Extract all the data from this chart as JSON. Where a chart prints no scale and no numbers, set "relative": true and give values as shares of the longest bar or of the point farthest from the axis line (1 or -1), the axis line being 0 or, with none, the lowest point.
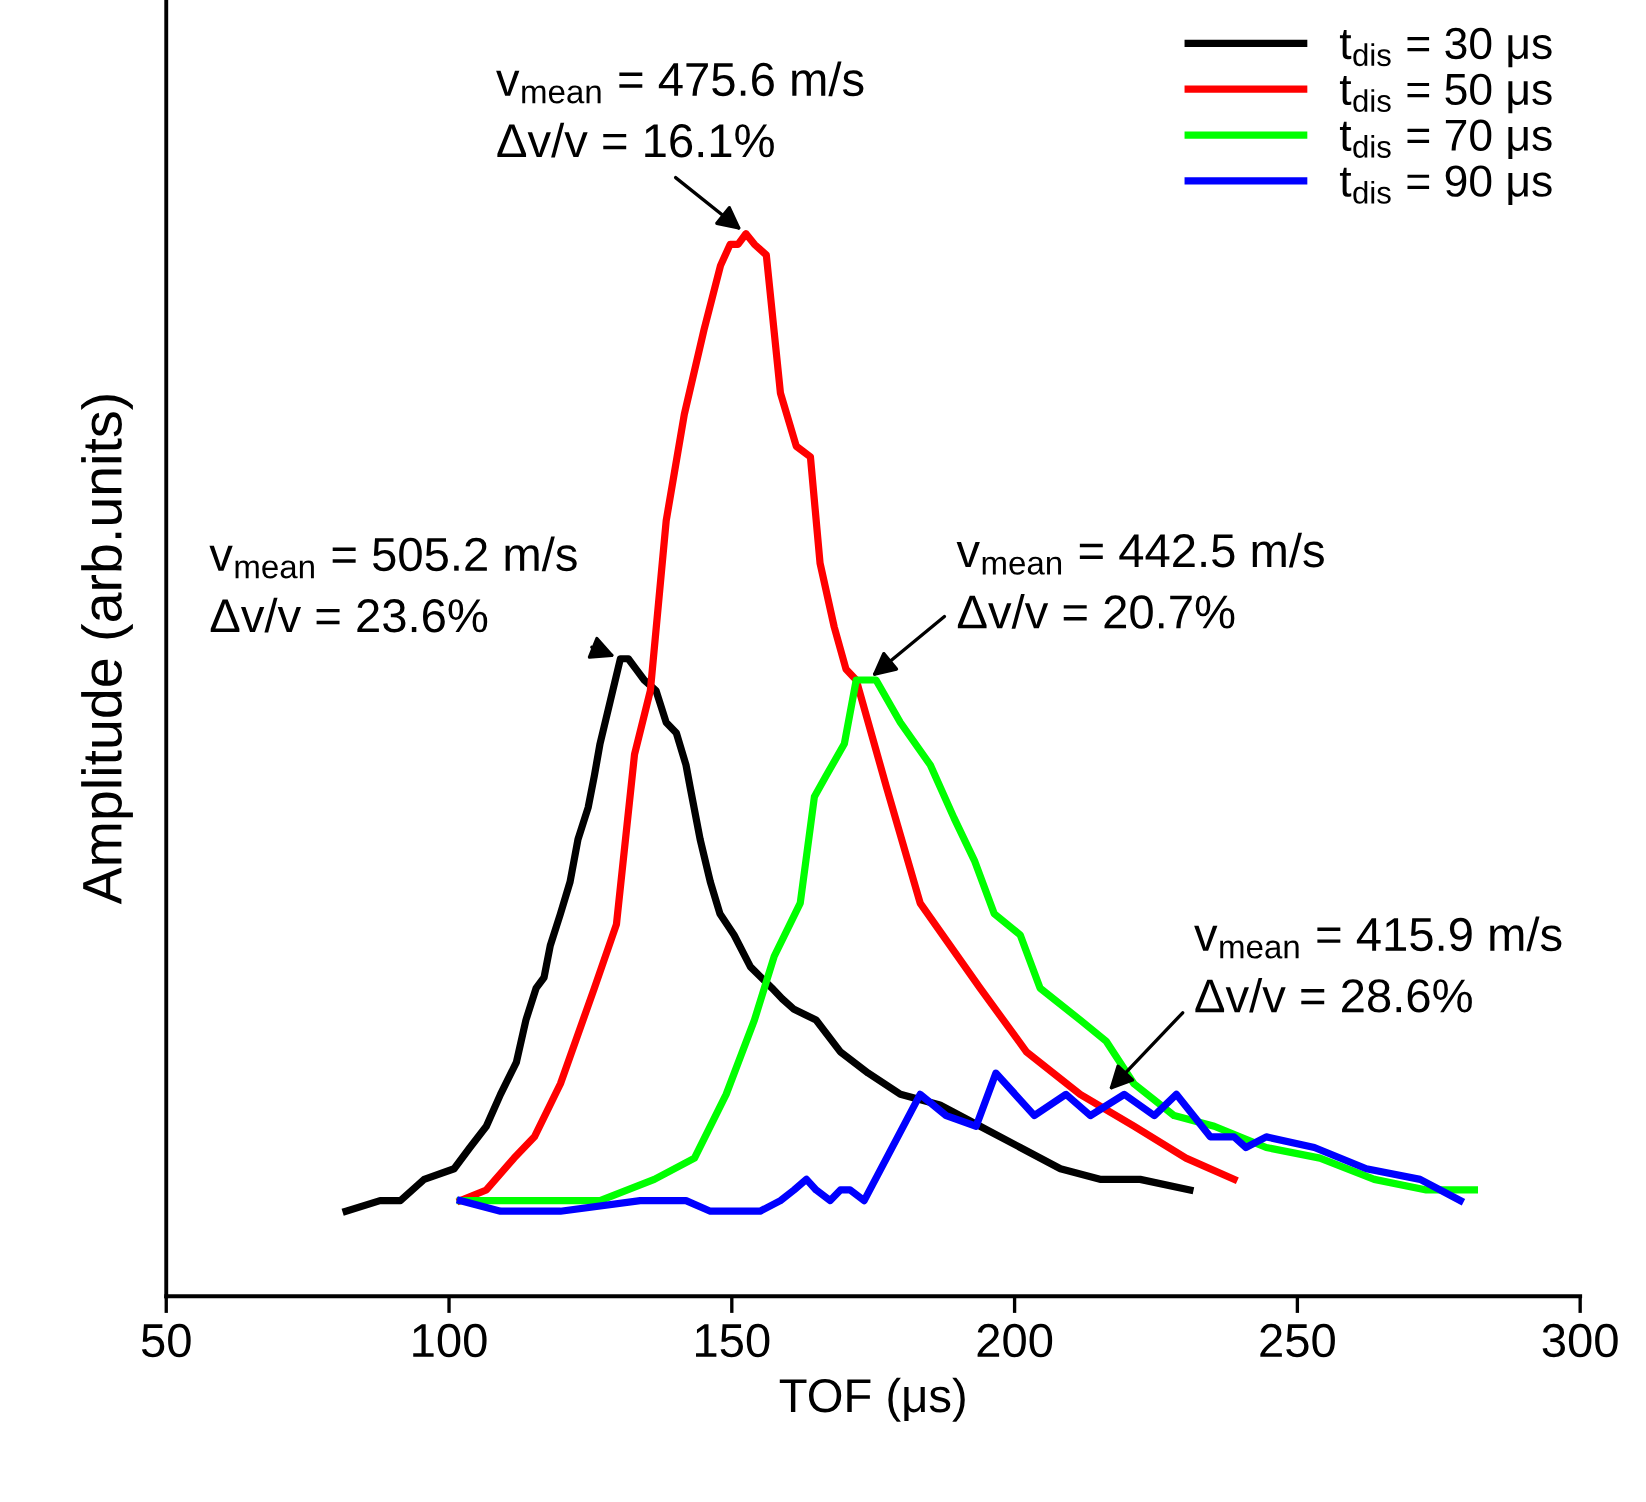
{
  "chart_data": {
    "type": "line",
    "relative": true,
    "xlabel": "TOF (μs)",
    "ylabel": "Amplitude (arb.units)",
    "xlim": [
      50,
      300
    ],
    "xticks": [
      50,
      100,
      150,
      200,
      250,
      300
    ],
    "grid": false,
    "legend": "top right",
    "marker": "none",
    "line_style": "solid",
    "series": [
      {
        "name": "t$_{dis}$ = 30 μs",
        "color": "#000000",
        "x": [
          81.8,
          87.8,
          91.4,
          95.6,
          100.9,
          103.7,
          106.6,
          109.1,
          111.9,
          113.6,
          115.4,
          116.8,
          117.9,
          119.7,
          121.4,
          122.8,
          124.6,
          125.7,
          126.7,
          128.5,
          130.3,
          131.7,
          133.1,
          134.5,
          136.6,
          138.4,
          140.2,
          141.9,
          142.6,
          144.4,
          146.2,
          147.9,
          150.4,
          153.3,
          157.1,
          158.9,
          161.0,
          164.9,
          169.2,
          174.1,
          179.8,
          186.8,
          193.9,
          201.0,
          208.1,
          215.1,
          222.2,
          231.0
        ],
        "values": [
          0.08,
          0.09,
          0.09,
          0.11,
          0.12,
          0.14,
          0.16,
          0.19,
          0.22,
          0.26,
          0.29,
          0.3,
          0.33,
          0.36,
          0.39,
          0.43,
          0.46,
          0.49,
          0.52,
          0.56,
          0.6,
          0.6,
          0.59,
          0.58,
          0.57,
          0.54,
          0.53,
          0.5,
          0.48,
          0.43,
          0.39,
          0.36,
          0.34,
          0.31,
          0.29,
          0.28,
          0.27,
          0.26,
          0.23,
          0.21,
          0.19,
          0.18,
          0.16,
          0.14,
          0.12,
          0.11,
          0.11,
          0.1
        ]
      },
      {
        "name": "t$_{dis}$ = 50 μs",
        "color": "#ff0000",
        "x": [
          102.0,
          106.6,
          111.5,
          115.1,
          119.7,
          125.7,
          129.6,
          132.8,
          135.6,
          138.4,
          141.6,
          145.1,
          148.0,
          149.7,
          151.1,
          152.5,
          154.0,
          156.1,
          158.6,
          161.4,
          163.9,
          165.6,
          168.1,
          170.2,
          172.0,
          177.3,
          183.3,
          193.9,
          202.1,
          211.6,
          221.1,
          230.3,
          238.8
        ],
        "values": [
          0.09,
          0.1,
          0.13,
          0.15,
          0.2,
          0.29,
          0.35,
          0.51,
          0.57,
          0.73,
          0.83,
          0.91,
          0.97,
          0.99,
          0.99,
          1.0,
          0.99,
          0.98,
          0.85,
          0.8,
          0.79,
          0.69,
          0.63,
          0.59,
          0.58,
          0.48,
          0.37,
          0.29,
          0.23,
          0.19,
          0.16,
          0.13,
          0.11
        ]
      },
      {
        "name": "t$_{dis}$ = 70 μs",
        "color": "#00ff00",
        "x": [
          102.0,
          112.6,
          126.7,
          136.3,
          143.4,
          149.0,
          154.0,
          157.5,
          162.1,
          164.6,
          166.7,
          169.9,
          172.0,
          175.5,
          179.8,
          185.1,
          189.3,
          192.9,
          196.4,
          201.0,
          204.5,
          211.6,
          216.2,
          221.1,
          228.2,
          235.3,
          244.5,
          254.0,
          263.6,
          272.8,
          281.3
        ],
        "values": [
          0.09,
          0.09,
          0.09,
          0.11,
          0.13,
          0.19,
          0.26,
          0.32,
          0.37,
          0.47,
          0.49,
          0.52,
          0.58,
          0.58,
          0.54,
          0.5,
          0.45,
          0.41,
          0.36,
          0.34,
          0.29,
          0.26,
          0.24,
          0.2,
          0.17,
          0.16,
          0.14,
          0.13,
          0.11,
          0.1,
          0.1
        ]
      },
      {
        "name": "t$_{dis}$ = 90 μs",
        "color": "#0000ff",
        "x": [
          102.0,
          109.1,
          119.7,
          133.8,
          141.9,
          146.2,
          155.0,
          158.6,
          161.0,
          163.2,
          164.9,
          167.4,
          169.2,
          170.9,
          173.4,
          183.3,
          187.9,
          193.2,
          196.7,
          203.5,
          209.1,
          213.4,
          219.4,
          224.7,
          228.6,
          234.6,
          238.8,
          240.9,
          244.5,
          253.0,
          262.2,
          271.7,
          278.8
        ],
        "values": [
          0.09,
          0.08,
          0.08,
          0.09,
          0.09,
          0.08,
          0.08,
          0.09,
          0.1,
          0.11,
          0.1,
          0.09,
          0.1,
          0.1,
          0.09,
          0.19,
          0.17,
          0.16,
          0.21,
          0.17,
          0.19,
          0.17,
          0.19,
          0.17,
          0.19,
          0.15,
          0.15,
          0.14,
          0.15,
          0.14,
          0.12,
          0.11,
          0.09
        ]
      }
    ],
    "annotations": [
      {
        "text": "v$_{mean}$ = 475.6 m/s\nΔv/v = 16.1%",
        "x": 152.5,
        "y": 1.0
      },
      {
        "text": "v$_{mean}$ = 505.2 m/s\nΔv/v = 23.6%",
        "x": 130.3,
        "y": 0.6
      },
      {
        "text": "v$_{mean}$ = 442.5 m/s\nΔv/v = 20.7%",
        "x": 174.0,
        "y": 0.58
      },
      {
        "text": "v$_{mean}$ = 415.9 m/s\nΔv/v = 28.6%",
        "x": 216.0,
        "y": 0.19
      }
    ]
  }
}
